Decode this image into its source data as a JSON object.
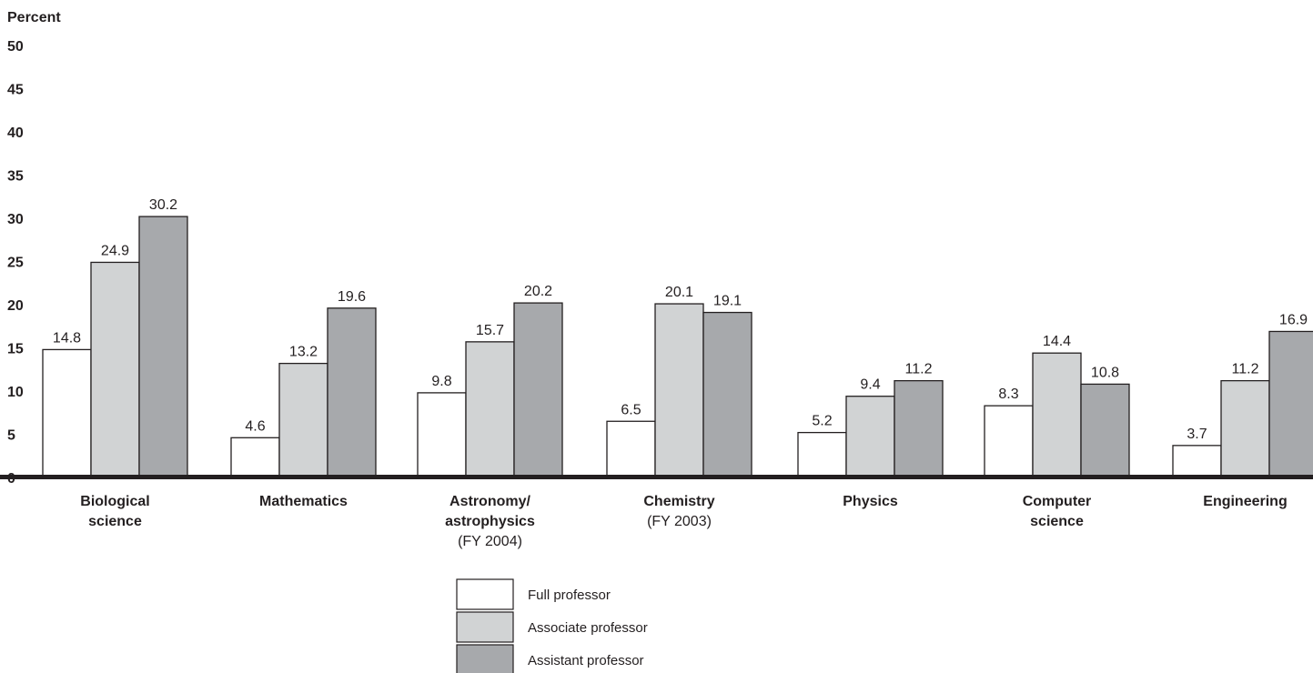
{
  "chart_data": {
    "type": "bar",
    "ylabel": "Percent",
    "ylim": [
      0,
      50
    ],
    "yticks": [
      "50",
      "45",
      "40",
      "35",
      "30",
      "25",
      "20",
      "15",
      "10",
      "5",
      "0"
    ],
    "categories": [
      {
        "lines": [
          "Biological",
          "science"
        ],
        "note": ""
      },
      {
        "lines": [
          "Mathematics"
        ],
        "note": ""
      },
      {
        "lines": [
          "Astronomy/",
          "astrophysics"
        ],
        "note": "(FY 2004)"
      },
      {
        "lines": [
          "Chemistry"
        ],
        "note": "(FY 2003)"
      },
      {
        "lines": [
          "Physics"
        ],
        "note": ""
      },
      {
        "lines": [
          "Computer",
          "science"
        ],
        "note": ""
      },
      {
        "lines": [
          "Engineering"
        ],
        "note": ""
      }
    ],
    "series": [
      {
        "name": "Full professor",
        "color": "#ffffff",
        "values": [
          14.8,
          4.6,
          9.8,
          6.5,
          5.2,
          8.3,
          3.7
        ]
      },
      {
        "name": "Associate professor",
        "color": "#d1d3d4",
        "values": [
          24.9,
          13.2,
          15.7,
          20.1,
          9.4,
          14.4,
          11.2
        ]
      },
      {
        "name": "Assistant professor",
        "color": "#a7a9ac",
        "values": [
          30.2,
          19.6,
          20.2,
          19.1,
          11.2,
          10.8,
          16.9
        ]
      }
    ],
    "value_labels": [
      [
        "14.8",
        "4.6",
        "9.8",
        "6.5",
        "5.2",
        "8.3",
        "3.7"
      ],
      [
        "24.9",
        "13.2",
        "15.7",
        "20.1",
        "9.4",
        "14.4",
        "11.2"
      ],
      [
        "30.2",
        "19.6",
        "20.2",
        "19.1",
        "11.2",
        "10.8",
        "16.9"
      ]
    ],
    "legend_position": "bottom-center",
    "grid": false
  }
}
